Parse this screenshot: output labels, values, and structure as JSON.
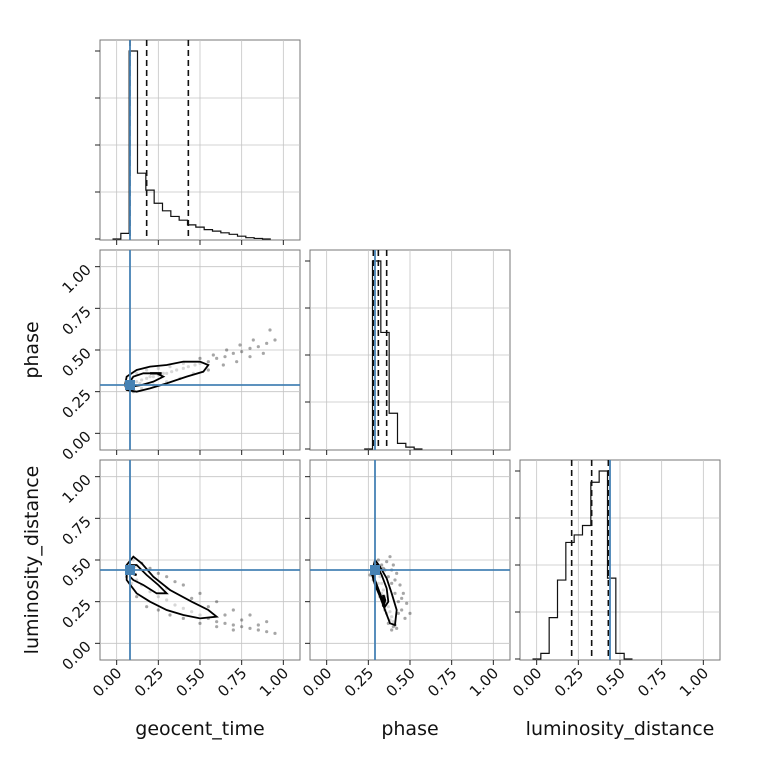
{
  "chart_data": {
    "type": "corner",
    "parameters": [
      "geocent_time",
      "phase",
      "luminosity_distance"
    ],
    "axis_labels": {
      "x": [
        "geocent_time",
        "phase",
        "luminosity_distance"
      ],
      "y": [
        "phase",
        "luminosity_distance"
      ]
    },
    "range": [
      -0.1,
      1.1
    ],
    "tick_values": [
      0.0,
      0.25,
      0.5,
      0.75,
      1.0
    ],
    "tick_labels": [
      "0.00",
      "0.25",
      "0.50",
      "0.75",
      "1.00"
    ],
    "grid": true,
    "truths": {
      "geocent_time": 0.08,
      "phase": 0.29,
      "luminosity_distance": 0.44
    },
    "truth_color": "#4682b4",
    "histograms": [
      {
        "parameter": "geocent_time",
        "bin_edges": [
          -0.025,
          0.025,
          0.075,
          0.125,
          0.175,
          0.225,
          0.275,
          0.325,
          0.375,
          0.425,
          0.475,
          0.525,
          0.575,
          0.625,
          0.675,
          0.725,
          0.775,
          0.825,
          0.875,
          0.925
        ],
        "counts": [
          0.0,
          0.03,
          1.0,
          0.35,
          0.26,
          0.19,
          0.15,
          0.12,
          0.1,
          0.075,
          0.063,
          0.05,
          0.042,
          0.033,
          0.025,
          0.015,
          0.007,
          0.003,
          0.0
        ],
        "quantiles": [
          0.08,
          0.18,
          0.43
        ]
      },
      {
        "parameter": "phase",
        "bin_edges": [
          0.225,
          0.275,
          0.325,
          0.375,
          0.425,
          0.475,
          0.525,
          0.575
        ],
        "counts": [
          0.0,
          1.0,
          0.62,
          0.19,
          0.03,
          0.01,
          0.0
        ],
        "quantiles": [
          0.28,
          0.31,
          0.36
        ]
      },
      {
        "parameter": "luminosity_distance",
        "bin_edges": [
          -0.025,
          0.025,
          0.075,
          0.125,
          0.175,
          0.225,
          0.275,
          0.325,
          0.375,
          0.425,
          0.475,
          0.525,
          0.575
        ],
        "counts": [
          0.0,
          0.03,
          0.22,
          0.42,
          0.62,
          0.66,
          0.71,
          0.94,
          1.0,
          0.43,
          0.03,
          0.0
        ],
        "quantiles": [
          0.21,
          0.33,
          0.43
        ]
      }
    ],
    "scatter_panels": [
      {
        "x": "geocent_time",
        "y": "phase",
        "points": [
          [
            0.08,
            0.29
          ],
          [
            0.1,
            0.3
          ],
          [
            0.12,
            0.31
          ],
          [
            0.15,
            0.32
          ],
          [
            0.18,
            0.33
          ],
          [
            0.2,
            0.34
          ],
          [
            0.22,
            0.34
          ],
          [
            0.25,
            0.35
          ],
          [
            0.28,
            0.36
          ],
          [
            0.3,
            0.36
          ],
          [
            0.33,
            0.37
          ],
          [
            0.36,
            0.38
          ],
          [
            0.4,
            0.39
          ],
          [
            0.43,
            0.4
          ],
          [
            0.47,
            0.41
          ],
          [
            0.5,
            0.42
          ],
          [
            0.55,
            0.43
          ],
          [
            0.6,
            0.45
          ],
          [
            0.65,
            0.46
          ],
          [
            0.7,
            0.48
          ],
          [
            0.75,
            0.49
          ],
          [
            0.8,
            0.51
          ],
          [
            0.85,
            0.52
          ],
          [
            0.9,
            0.54
          ],
          [
            0.95,
            0.56
          ],
          [
            0.12,
            0.36
          ],
          [
            0.18,
            0.38
          ],
          [
            0.25,
            0.39
          ],
          [
            0.32,
            0.4
          ],
          [
            0.4,
            0.42
          ],
          [
            0.5,
            0.45
          ],
          [
            0.58,
            0.47
          ],
          [
            0.66,
            0.5
          ],
          [
            0.74,
            0.53
          ],
          [
            0.82,
            0.56
          ],
          [
            0.92,
            0.62
          ],
          [
            0.15,
            0.27
          ],
          [
            0.22,
            0.29
          ],
          [
            0.3,
            0.31
          ],
          [
            0.38,
            0.33
          ],
          [
            0.46,
            0.36
          ],
          [
            0.55,
            0.38
          ],
          [
            0.64,
            0.41
          ],
          [
            0.72,
            0.43
          ],
          [
            0.8,
            0.46
          ],
          [
            0.88,
            0.48
          ],
          [
            0.1,
            0.25
          ],
          [
            0.06,
            0.3
          ],
          [
            0.09,
            0.33
          ],
          [
            0.14,
            0.3
          ]
        ],
        "contours": [
          [
            [
              0.06,
              0.26
            ],
            [
              0.12,
              0.25
            ],
            [
              0.2,
              0.27
            ],
            [
              0.3,
              0.3
            ],
            [
              0.42,
              0.34
            ],
            [
              0.52,
              0.37
            ],
            [
              0.55,
              0.41
            ],
            [
              0.5,
              0.43
            ],
            [
              0.4,
              0.43
            ],
            [
              0.3,
              0.41
            ],
            [
              0.2,
              0.4
            ],
            [
              0.12,
              0.38
            ],
            [
              0.06,
              0.34
            ],
            [
              0.05,
              0.29
            ]
          ],
          [
            [
              0.09,
              0.28
            ],
            [
              0.15,
              0.29
            ],
            [
              0.22,
              0.31
            ],
            [
              0.28,
              0.34
            ],
            [
              0.24,
              0.36
            ],
            [
              0.16,
              0.36
            ],
            [
              0.1,
              0.34
            ],
            [
              0.08,
              0.31
            ]
          ],
          [
            [
              0.2,
              0.36
            ],
            [
              0.27,
              0.36
            ]
          ]
        ]
      },
      {
        "x": "geocent_time",
        "y": "luminosity_distance",
        "points": [
          [
            0.08,
            0.44
          ],
          [
            0.1,
            0.42
          ],
          [
            0.12,
            0.38
          ],
          [
            0.15,
            0.35
          ],
          [
            0.2,
            0.31
          ],
          [
            0.25,
            0.28
          ],
          [
            0.3,
            0.26
          ],
          [
            0.35,
            0.23
          ],
          [
            0.4,
            0.21
          ],
          [
            0.45,
            0.19
          ],
          [
            0.5,
            0.17
          ],
          [
            0.55,
            0.15
          ],
          [
            0.6,
            0.13
          ],
          [
            0.65,
            0.12
          ],
          [
            0.7,
            0.11
          ],
          [
            0.75,
            0.1
          ],
          [
            0.8,
            0.09
          ],
          [
            0.85,
            0.08
          ],
          [
            0.9,
            0.07
          ],
          [
            0.95,
            0.06
          ],
          [
            0.1,
            0.5
          ],
          [
            0.15,
            0.48
          ],
          [
            0.2,
            0.45
          ],
          [
            0.25,
            0.42
          ],
          [
            0.3,
            0.4
          ],
          [
            0.35,
            0.37
          ],
          [
            0.4,
            0.35
          ],
          [
            0.5,
            0.3
          ],
          [
            0.6,
            0.25
          ],
          [
            0.7,
            0.2
          ],
          [
            0.8,
            0.17
          ],
          [
            0.9,
            0.13
          ],
          [
            0.12,
            0.28
          ],
          [
            0.18,
            0.22
          ],
          [
            0.25,
            0.2
          ],
          [
            0.32,
            0.17
          ],
          [
            0.4,
            0.15
          ],
          [
            0.5,
            0.12
          ],
          [
            0.6,
            0.1
          ],
          [
            0.7,
            0.08
          ],
          [
            0.06,
            0.4
          ],
          [
            0.07,
            0.47
          ],
          [
            0.11,
            0.46
          ],
          [
            0.09,
            0.36
          ],
          [
            0.3,
            0.33
          ],
          [
            0.45,
            0.27
          ],
          [
            0.55,
            0.22
          ],
          [
            0.65,
            0.17
          ],
          [
            0.75,
            0.14
          ],
          [
            0.85,
            0.11
          ]
        ],
        "contours": [
          [
            [
              0.06,
              0.38
            ],
            [
              0.06,
              0.47
            ],
            [
              0.1,
              0.52
            ],
            [
              0.15,
              0.48
            ],
            [
              0.22,
              0.4
            ],
            [
              0.32,
              0.32
            ],
            [
              0.45,
              0.25
            ],
            [
              0.55,
              0.2
            ],
            [
              0.6,
              0.16
            ],
            [
              0.5,
              0.15
            ],
            [
              0.4,
              0.17
            ],
            [
              0.3,
              0.2
            ],
            [
              0.2,
              0.25
            ],
            [
              0.12,
              0.3
            ]
          ],
          [
            [
              0.08,
              0.4
            ],
            [
              0.08,
              0.47
            ],
            [
              0.12,
              0.47
            ],
            [
              0.18,
              0.41
            ],
            [
              0.25,
              0.35
            ],
            [
              0.3,
              0.3
            ],
            [
              0.24,
              0.3
            ],
            [
              0.16,
              0.35
            ],
            [
              0.1,
              0.38
            ]
          ],
          [
            [
              0.09,
              0.42
            ],
            [
              0.12,
              0.41
            ]
          ]
        ]
      },
      {
        "x": "phase",
        "y": "luminosity_distance",
        "points": [
          [
            0.29,
            0.44
          ],
          [
            0.3,
            0.42
          ],
          [
            0.32,
            0.4
          ],
          [
            0.33,
            0.36
          ],
          [
            0.34,
            0.32
          ],
          [
            0.35,
            0.28
          ],
          [
            0.36,
            0.25
          ],
          [
            0.37,
            0.22
          ],
          [
            0.38,
            0.19
          ],
          [
            0.39,
            0.16
          ],
          [
            0.4,
            0.13
          ],
          [
            0.41,
            0.11
          ],
          [
            0.42,
            0.09
          ],
          [
            0.3,
            0.48
          ],
          [
            0.31,
            0.5
          ],
          [
            0.33,
            0.47
          ],
          [
            0.35,
            0.44
          ],
          [
            0.37,
            0.4
          ],
          [
            0.39,
            0.36
          ],
          [
            0.41,
            0.3
          ],
          [
            0.43,
            0.25
          ],
          [
            0.45,
            0.2
          ],
          [
            0.47,
            0.15
          ],
          [
            0.28,
            0.38
          ],
          [
            0.3,
            0.33
          ],
          [
            0.32,
            0.28
          ],
          [
            0.34,
            0.23
          ],
          [
            0.36,
            0.18
          ],
          [
            0.38,
            0.14
          ],
          [
            0.4,
            0.1
          ],
          [
            0.34,
            0.45
          ],
          [
            0.36,
            0.49
          ],
          [
            0.38,
            0.52
          ],
          [
            0.4,
            0.47
          ],
          [
            0.42,
            0.42
          ],
          [
            0.44,
            0.35
          ],
          [
            0.46,
            0.3
          ],
          [
            0.48,
            0.24
          ],
          [
            0.5,
            0.18
          ],
          [
            0.27,
            0.45
          ],
          [
            0.26,
            0.41
          ],
          [
            0.31,
            0.36
          ],
          [
            0.33,
            0.3
          ],
          [
            0.35,
            0.2
          ],
          [
            0.37,
            0.12
          ],
          [
            0.39,
            0.08
          ],
          [
            0.43,
            0.18
          ],
          [
            0.45,
            0.27
          ],
          [
            0.41,
            0.38
          ],
          [
            0.39,
            0.44
          ]
        ],
        "contours": [
          [
            [
              0.27,
              0.42
            ],
            [
              0.29,
              0.5
            ],
            [
              0.32,
              0.46
            ],
            [
              0.36,
              0.39
            ],
            [
              0.39,
              0.3
            ],
            [
              0.42,
              0.2
            ],
            [
              0.41,
              0.11
            ],
            [
              0.38,
              0.12
            ],
            [
              0.35,
              0.2
            ],
            [
              0.32,
              0.28
            ],
            [
              0.29,
              0.35
            ]
          ],
          [
            [
              0.28,
              0.43
            ],
            [
              0.3,
              0.47
            ],
            [
              0.33,
              0.41
            ],
            [
              0.36,
              0.33
            ],
            [
              0.37,
              0.25
            ],
            [
              0.35,
              0.22
            ],
            [
              0.32,
              0.3
            ],
            [
              0.29,
              0.38
            ]
          ],
          [
            [
              0.34,
              0.22
            ],
            [
              0.35,
              0.26
            ],
            [
              0.34,
              0.29
            ]
          ]
        ]
      }
    ]
  }
}
